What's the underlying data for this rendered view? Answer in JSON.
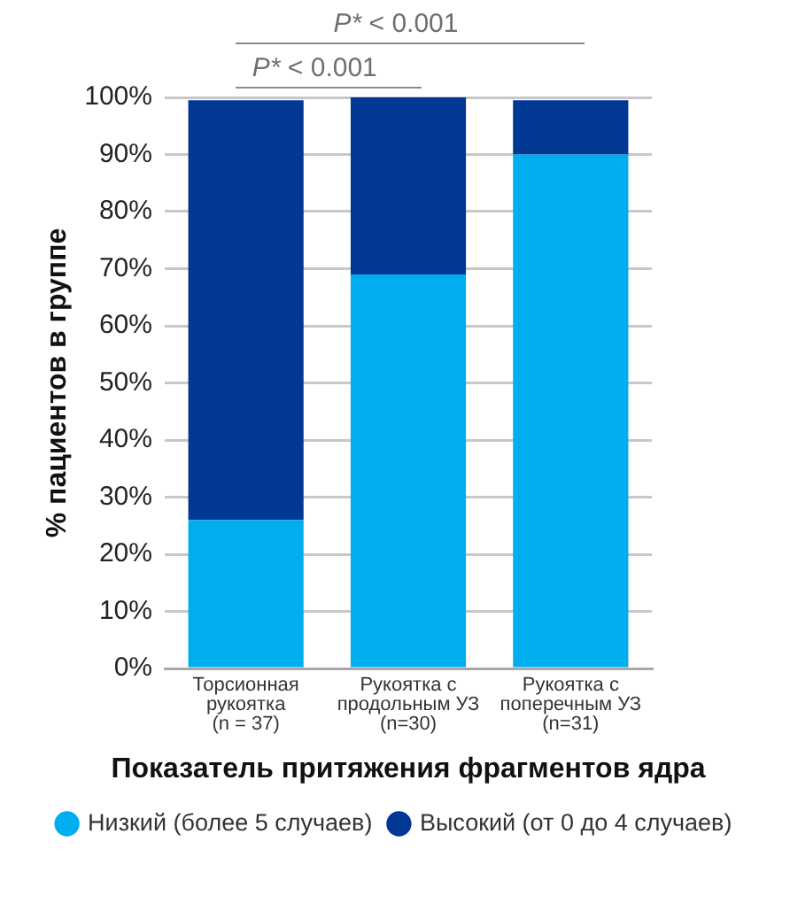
{
  "chart_data": {
    "type": "bar",
    "stacked": true,
    "categories": [
      "Торсионная\nрукоятка\n(n = 37)",
      "Рукоятка с\nпродольным УЗ\n(n=30)",
      "Рукоятка с\nпоперечным УЗ\n(n=31)"
    ],
    "series": [
      {
        "name": "Низкий (более 5 случаев)",
        "color": "#00aeef",
        "values": [
          26,
          69,
          90
        ]
      },
      {
        "name": "Высокий (от 0 до 4 случаев)",
        "color": "#003893",
        "values": [
          73.5,
          31,
          9.5
        ]
      }
    ],
    "ylim": [
      0,
      100
    ],
    "yticks": [
      {
        "value": 0,
        "label": "0%"
      },
      {
        "value": 10,
        "label": "10%"
      },
      {
        "value": 20,
        "label": "20%"
      },
      {
        "value": 30,
        "label": "30%"
      },
      {
        "value": 40,
        "label": "40%"
      },
      {
        "value": 50,
        "label": "50%"
      },
      {
        "value": 60,
        "label": "60%"
      },
      {
        "value": 70,
        "label": "70%"
      },
      {
        "value": 80,
        "label": "80%"
      },
      {
        "value": 90,
        "label": "90%"
      },
      {
        "value": 100,
        "label": "100%"
      }
    ],
    "ylabel": "% пациентов в группе",
    "xlabel": "Показатель притяжения фрагментов ядра",
    "grid": "y",
    "legend": "bottom",
    "annotations": [
      "P* < 0.001",
      "P* < 0.001"
    ]
  }
}
